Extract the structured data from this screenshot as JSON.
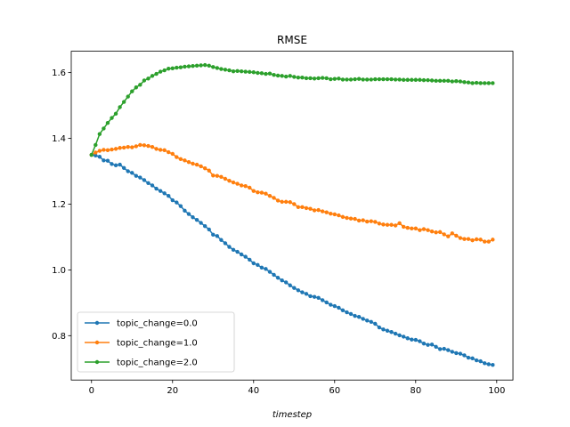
{
  "chart_data": {
    "type": "line",
    "title": "RMSE",
    "xlabel": "timestep",
    "ylabel": "",
    "xlim": [
      -5,
      104
    ],
    "ylim": [
      0.665,
      1.665
    ],
    "xticks": [
      0,
      20,
      40,
      60,
      80,
      100
    ],
    "xtick_labels": [
      "0",
      "20",
      "40",
      "60",
      "80",
      "100"
    ],
    "yticks": [
      0.8,
      1.0,
      1.2,
      1.4,
      1.6
    ],
    "ytick_labels": [
      "0.8",
      "1.0",
      "1.2",
      "1.4",
      "1.6"
    ],
    "grid": false,
    "legend": "lower-left",
    "x": [
      0,
      1,
      2,
      3,
      4,
      5,
      6,
      7,
      8,
      9,
      10,
      11,
      12,
      13,
      14,
      15,
      16,
      17,
      18,
      19,
      20,
      21,
      22,
      23,
      24,
      25,
      26,
      27,
      28,
      29,
      30,
      31,
      32,
      33,
      34,
      35,
      36,
      37,
      38,
      39,
      40,
      41,
      42,
      43,
      44,
      45,
      46,
      47,
      48,
      49,
      50,
      51,
      52,
      53,
      54,
      55,
      56,
      57,
      58,
      59,
      60,
      61,
      62,
      63,
      64,
      65,
      66,
      67,
      68,
      69,
      70,
      71,
      72,
      73,
      74,
      75,
      76,
      77,
      78,
      79,
      80,
      81,
      82,
      83,
      84,
      85,
      86,
      87,
      88,
      89,
      90,
      91,
      92,
      93,
      94,
      95,
      96,
      97,
      98,
      99
    ],
    "series": [
      {
        "name": "topic_change=0.0",
        "color": "#1f77b4",
        "values": [
          1.35,
          1.348,
          1.344,
          1.333,
          1.332,
          1.322,
          1.318,
          1.32,
          1.31,
          1.3,
          1.295,
          1.286,
          1.281,
          1.273,
          1.264,
          1.257,
          1.247,
          1.24,
          1.233,
          1.225,
          1.212,
          1.205,
          1.194,
          1.18,
          1.17,
          1.16,
          1.152,
          1.143,
          1.133,
          1.123,
          1.107,
          1.103,
          1.091,
          1.081,
          1.07,
          1.061,
          1.055,
          1.047,
          1.04,
          1.031,
          1.02,
          1.015,
          1.007,
          1.003,
          0.994,
          0.985,
          0.976,
          0.968,
          0.962,
          0.953,
          0.945,
          0.938,
          0.932,
          0.927,
          0.92,
          0.918,
          0.915,
          0.908,
          0.901,
          0.894,
          0.89,
          0.885,
          0.877,
          0.871,
          0.866,
          0.86,
          0.857,
          0.851,
          0.846,
          0.842,
          0.836,
          0.825,
          0.819,
          0.815,
          0.811,
          0.806,
          0.801,
          0.797,
          0.792,
          0.788,
          0.787,
          0.783,
          0.776,
          0.772,
          0.773,
          0.766,
          0.759,
          0.76,
          0.756,
          0.751,
          0.747,
          0.745,
          0.74,
          0.733,
          0.731,
          0.725,
          0.722,
          0.716,
          0.713,
          0.711
        ]
      },
      {
        "name": "topic_change=1.0",
        "color": "#ff7f0e",
        "values": [
          1.35,
          1.357,
          1.362,
          1.365,
          1.364,
          1.366,
          1.368,
          1.371,
          1.372,
          1.374,
          1.373,
          1.376,
          1.38,
          1.379,
          1.377,
          1.374,
          1.368,
          1.365,
          1.364,
          1.358,
          1.353,
          1.343,
          1.337,
          1.333,
          1.328,
          1.323,
          1.32,
          1.315,
          1.309,
          1.302,
          1.287,
          1.286,
          1.283,
          1.277,
          1.271,
          1.266,
          1.262,
          1.257,
          1.255,
          1.25,
          1.24,
          1.236,
          1.235,
          1.232,
          1.225,
          1.219,
          1.211,
          1.207,
          1.207,
          1.206,
          1.2,
          1.191,
          1.191,
          1.188,
          1.186,
          1.181,
          1.182,
          1.178,
          1.175,
          1.171,
          1.169,
          1.166,
          1.161,
          1.158,
          1.156,
          1.155,
          1.15,
          1.151,
          1.147,
          1.148,
          1.146,
          1.141,
          1.138,
          1.137,
          1.137,
          1.135,
          1.142,
          1.131,
          1.128,
          1.126,
          1.126,
          1.121,
          1.124,
          1.121,
          1.117,
          1.114,
          1.115,
          1.108,
          1.102,
          1.111,
          1.104,
          1.097,
          1.094,
          1.094,
          1.09,
          1.093,
          1.092,
          1.086,
          1.086,
          1.092
        ]
      },
      {
        "name": "topic_change=2.0",
        "color": "#2ca02c",
        "values": [
          1.35,
          1.38,
          1.413,
          1.43,
          1.447,
          1.462,
          1.475,
          1.495,
          1.511,
          1.527,
          1.543,
          1.555,
          1.563,
          1.576,
          1.582,
          1.59,
          1.596,
          1.603,
          1.607,
          1.612,
          1.613,
          1.615,
          1.616,
          1.618,
          1.619,
          1.62,
          1.621,
          1.622,
          1.623,
          1.621,
          1.617,
          1.614,
          1.611,
          1.609,
          1.607,
          1.604,
          1.605,
          1.604,
          1.603,
          1.602,
          1.601,
          1.599,
          1.598,
          1.596,
          1.597,
          1.593,
          1.591,
          1.59,
          1.588,
          1.59,
          1.587,
          1.585,
          1.585,
          1.583,
          1.583,
          1.582,
          1.583,
          1.584,
          1.583,
          1.58,
          1.581,
          1.582,
          1.579,
          1.579,
          1.579,
          1.58,
          1.581,
          1.579,
          1.579,
          1.579,
          1.58,
          1.58,
          1.58,
          1.58,
          1.58,
          1.579,
          1.579,
          1.578,
          1.578,
          1.578,
          1.578,
          1.578,
          1.577,
          1.577,
          1.576,
          1.575,
          1.575,
          1.575,
          1.575,
          1.573,
          1.574,
          1.573,
          1.571,
          1.57,
          1.568,
          1.569,
          1.568,
          1.568,
          1.568,
          1.568
        ]
      }
    ]
  }
}
